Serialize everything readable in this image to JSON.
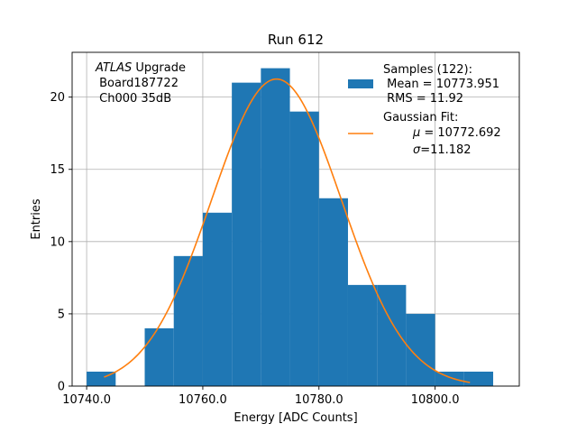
{
  "chart_data": {
    "type": "bar",
    "title": "Run 612",
    "xlabel": "Energy [ADC Counts]",
    "ylabel": "Entries",
    "xlim": [
      10737.5,
      10814.5
    ],
    "ylim": [
      0,
      23.1
    ],
    "xticks": [
      10740,
      10760,
      10780,
      10800
    ],
    "xtick_labels": [
      "10740.0",
      "10760.0",
      "10780.0",
      "10800.0"
    ],
    "yticks": [
      0,
      5,
      10,
      15,
      20
    ],
    "ytick_labels": [
      "0",
      "5",
      "10",
      "15",
      "20"
    ],
    "grid": true,
    "legend_position": "top-right",
    "histogram": {
      "name": "Samples (122):",
      "bin_edges": [
        10740,
        10745,
        10750,
        10755,
        10760,
        10765,
        10770,
        10775,
        10780,
        10785,
        10790,
        10795,
        10800,
        10805,
        10810
      ],
      "counts": [
        1,
        0,
        4,
        9,
        12,
        21,
        22,
        19,
        13,
        7,
        7,
        5,
        1,
        1
      ],
      "color": "#1f77b4"
    },
    "fit": {
      "name": "Gaussian Fit:",
      "mu": 10772.692,
      "sigma": 11.182,
      "amplitude": 21.25,
      "x_range": [
        10743,
        10806
      ],
      "color": "#ff7f0e"
    },
    "legend": {
      "samples_title": "Samples (122):",
      "samples_mean": " Mean = 10773.951",
      "samples_rms": " RMS = 11.92",
      "fit_title": "Gaussian Fit:",
      "fit_mu_symbol": "μ",
      "fit_mu_value": " = 10772.692",
      "fit_sigma_symbol": "σ",
      "fit_sigma_value": "=11.182"
    },
    "annotation": {
      "line1_italic": "ATLAS",
      "line1_rest": " Upgrade",
      "line2": " Board187722",
      "line3": " Ch000 35dB"
    }
  }
}
